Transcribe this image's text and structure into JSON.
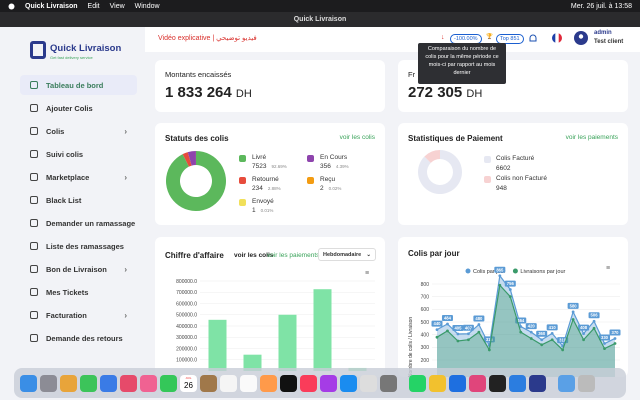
{
  "menubar": {
    "app": "Quick Livraison",
    "items": [
      "Edit",
      "View",
      "Window"
    ],
    "clock": "Mer. 26 juil. à 13:58"
  },
  "window_title": "Quick Livraison",
  "sidebar": {
    "logo": "Quick Livraison",
    "tagline": "Get fast delivery service",
    "items": [
      {
        "label": "Tableau de bord",
        "active": true
      },
      {
        "label": "Ajouter Colis"
      },
      {
        "label": "Colis",
        "submenu": true
      },
      {
        "label": "Suivi colis"
      },
      {
        "label": "Marketplace",
        "submenu": true
      },
      {
        "label": "Black List"
      },
      {
        "label": "Demander un ramassage"
      },
      {
        "label": "Liste des ramassages"
      },
      {
        "label": "Bon de Livraison",
        "submenu": true
      },
      {
        "label": "Mes Tickets"
      },
      {
        "label": "Facturation",
        "submenu": true
      },
      {
        "label": "Demande des retours"
      }
    ]
  },
  "header": {
    "video": "Vidéo explicative | فيديو توضيحي",
    "badge": "-100.00%",
    "top": "Top 851",
    "user": "admin",
    "role": "Test client",
    "tooltip": "Comparaison du nombre de colis pour la même période ce mois-ci par rapport au mois dernier"
  },
  "cards": [
    {
      "title": "Montants encaissés",
      "amount": "1 833 264",
      "unit": "DH"
    },
    {
      "title": "Fr",
      "amount": "272 305",
      "unit": "DH"
    }
  ],
  "status_chart": {
    "type": "pie",
    "title": "Statuts des colis",
    "link": "voir les colis",
    "items": [
      {
        "name": "Livré",
        "count": 7523,
        "percent": "92.69%",
        "color": "#5cb85c"
      },
      {
        "name": "Retourné",
        "count": 234,
        "percent": "2.88%",
        "color": "#e74c3c"
      },
      {
        "name": "Envoyé",
        "count": 1,
        "percent": "0.01%",
        "color": "#f1e05a"
      },
      {
        "name": "En Cours",
        "count": 356,
        "percent": "4.39%",
        "color": "#8e44ad"
      },
      {
        "name": "Reçu",
        "count": 2,
        "percent": "0.02%",
        "color": "#f39c12"
      }
    ]
  },
  "payment_chart": {
    "type": "pie",
    "title": "Statistiques de Paiement",
    "link": "voir les paiements",
    "items": [
      {
        "name": "Colis Facturé",
        "count": 6602,
        "color": "#e6e8f2"
      },
      {
        "name": "Colis non Facturé",
        "count": 948,
        "color": "#f7d2d2"
      }
    ]
  },
  "revenue_chart": {
    "type": "bar",
    "title": "Chiffre d'affaire",
    "link1": "voir les colis",
    "link2": "voir les paiements",
    "period": "Hebdomadaire",
    "color": "#7fe3a6",
    "values": [
      455000,
      145000,
      500000,
      727000,
      27000
    ],
    "ylim": [
      0,
      800000
    ],
    "yticks": [
      {
        "value": 100000,
        "label": "100000.0"
      },
      {
        "value": 200000,
        "label": "200000.0"
      },
      {
        "value": 300000,
        "label": "300000.0"
      },
      {
        "value": 400000,
        "label": "400000.0"
      },
      {
        "value": 500000,
        "label": "500000.0"
      },
      {
        "value": 600000,
        "label": "600000.0"
      },
      {
        "value": 700000,
        "label": "700000.0"
      },
      {
        "value": 800000,
        "label": "800000.0"
      }
    ]
  },
  "daily_chart": {
    "type": "line",
    "title": "Colis par jour",
    "y_label": "Nombre de colis / Livraison",
    "series": [
      {
        "name": "Colis par jour",
        "color": "#5b9bd5",
        "values": [
          440,
          484,
          405,
          407,
          480,
          315,
          865,
          756,
          464,
          420,
          360,
          410,
          310,
          580,
          408,
          506,
          330,
          370
        ]
      },
      {
        "name": "Livraisons par jour",
        "color": "#3a9a6a",
        "values": [
          380,
          430,
          350,
          360,
          420,
          280,
          790,
          700,
          420,
          370,
          320,
          360,
          280,
          520,
          360,
          450,
          290,
          330
        ]
      }
    ],
    "ylim": [
      200,
      800
    ],
    "yticks": [
      200,
      300,
      400,
      500,
      600,
      700,
      800
    ]
  },
  "dock": {
    "calendar_month": "JUIL",
    "calendar_day": "26"
  }
}
